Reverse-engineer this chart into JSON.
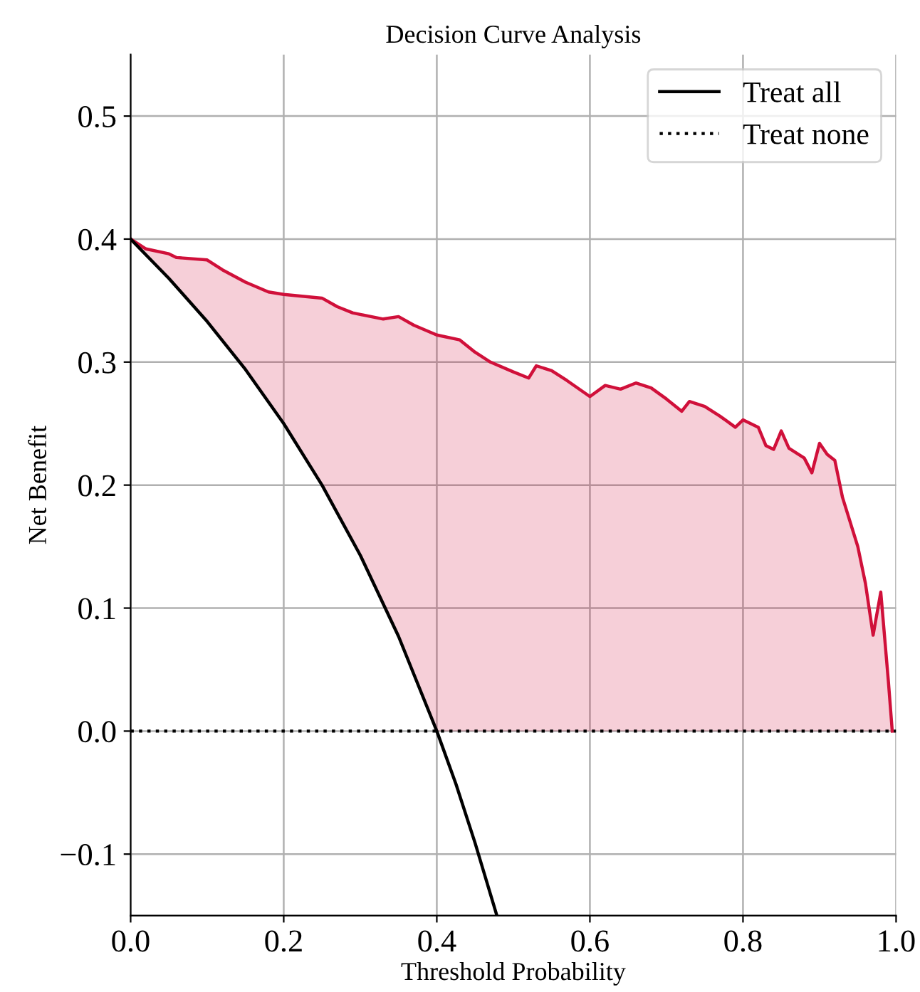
{
  "chart_data": {
    "type": "line",
    "title": "Decision Curve Analysis",
    "xlabel": "Threshold Probability",
    "ylabel": "Net Benefit",
    "xlim": [
      0,
      1
    ],
    "ylim": [
      -0.15,
      0.55
    ],
    "xticks": [
      {
        "value": 0,
        "label": "0.0"
      },
      0.2,
      0.4,
      0.6,
      0.8,
      {
        "value": 1,
        "label": "1.0"
      }
    ],
    "yticks": [
      {
        "value": -0.1,
        "label": "−0.1"
      },
      {
        "value": 0,
        "label": "0.0"
      },
      0.1,
      0.2,
      0.3,
      0.4,
      0.5
    ],
    "grid": true,
    "legend": "top right",
    "series": [
      {
        "color": "#d0103a",
        "line_style": "solid",
        "x": [
          0,
          0.02,
          0.05,
          0.06,
          0.1,
          0.12,
          0.15,
          0.18,
          0.2,
          0.25,
          0.27,
          0.29,
          0.33,
          0.35,
          0.37,
          0.4,
          0.43,
          0.45,
          0.47,
          0.5,
          0.52,
          0.53,
          0.55,
          0.57,
          0.6,
          0.62,
          0.64,
          0.66,
          0.68,
          0.7,
          0.72,
          0.73,
          0.75,
          0.77,
          0.79,
          0.8,
          0.82,
          0.83,
          0.84,
          0.85,
          0.86,
          0.88,
          0.89,
          0.9,
          0.91,
          0.92,
          0.93,
          0.95,
          0.96,
          0.97,
          0.98,
          0.99,
          0.995
        ],
        "values": [
          0.4,
          0.392,
          0.388,
          0.385,
          0.383,
          0.375,
          0.365,
          0.357,
          0.355,
          0.352,
          0.345,
          0.34,
          0.335,
          0.337,
          0.33,
          0.322,
          0.318,
          0.308,
          0.3,
          0.292,
          0.287,
          0.297,
          0.293,
          0.285,
          0.272,
          0.281,
          0.278,
          0.283,
          0.279,
          0.27,
          0.26,
          0.268,
          0.264,
          0.256,
          0.247,
          0.253,
          0.247,
          0.232,
          0.229,
          0.244,
          0.23,
          0.222,
          0.21,
          0.234,
          0.225,
          0.22,
          0.19,
          0.15,
          0.12,
          0.078,
          0.113,
          0.04,
          0.0
        ],
        "upper": [
          0.4,
          0.392,
          0.388,
          0.385,
          0.383,
          0.375,
          0.365,
          0.357,
          0.355,
          0.352,
          0.345,
          0.34,
          0.335,
          0.337,
          0.33,
          0.322,
          0.318,
          0.308,
          0.3,
          0.292,
          0.287,
          0.297,
          0.293,
          0.285,
          0.272,
          0.281,
          0.278,
          0.283,
          0.279,
          0.27,
          0.26,
          0.268,
          0.264,
          0.256,
          0.247,
          0.253,
          0.247,
          0.232,
          0.229,
          0.244,
          0.23,
          0.222,
          0.21,
          0.234,
          0.225,
          0.22,
          0.19,
          0.15,
          0.12,
          0.078,
          0.113,
          0.04,
          0.0
        ],
        "lower": [
          0.4,
          0.388,
          0.368,
          0.362,
          0.333,
          0.318,
          0.294,
          0.268,
          0.25,
          0.2,
          0.178,
          0.155,
          0.104,
          0.077,
          0.048,
          0.0,
          0.0,
          0.0,
          0.0,
          0.0,
          0.0,
          0.0,
          0.0,
          0.0,
          0.0,
          0.0,
          0.0,
          0.0,
          0.0,
          0.0,
          0.0,
          0.0,
          0.0,
          0.0,
          0.0,
          0.0,
          0.0,
          0.0,
          0.0,
          0.0,
          0.0,
          0.0,
          0.0,
          0.0,
          0.0,
          0.0,
          0.0,
          0.0,
          0.0,
          0.0,
          0.0,
          0.0,
          0.0
        ]
      },
      {
        "name": "Treat all",
        "color": "#000000",
        "line_style": "solid",
        "x": [
          0,
          0.05,
          0.1,
          0.15,
          0.2,
          0.25,
          0.3,
          0.35,
          0.4,
          0.425,
          0.45,
          0.478
        ],
        "values": [
          0.4,
          0.368,
          0.333,
          0.294,
          0.25,
          0.2,
          0.143,
          0.077,
          0.0,
          -0.043,
          -0.091,
          -0.149
        ]
      },
      {
        "name": "Treat none",
        "color": "#000000",
        "line_style": "dotted",
        "x": [
          0,
          1
        ],
        "values": [
          0,
          0
        ]
      }
    ]
  }
}
